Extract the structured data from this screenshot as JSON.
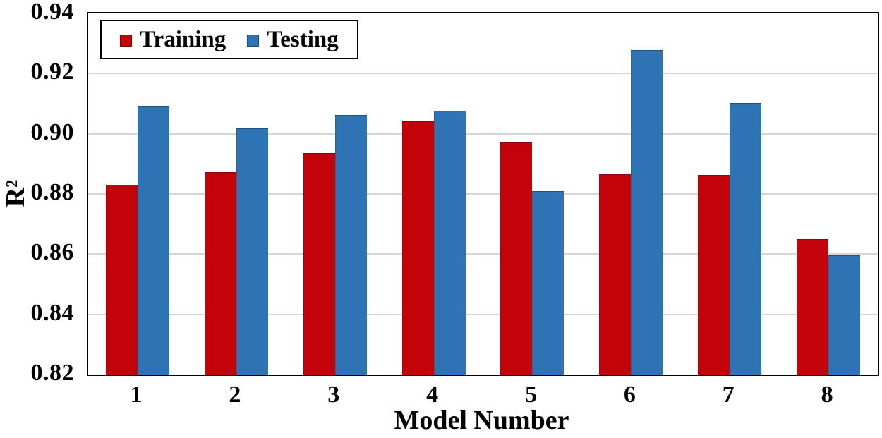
{
  "chart_data": {
    "type": "bar",
    "title": "",
    "xlabel": "Model Number",
    "ylabel": "R²",
    "categories": [
      "1",
      "2",
      "3",
      "4",
      "5",
      "6",
      "7",
      "8"
    ],
    "series": [
      {
        "name": "Training",
        "color": "#c20309",
        "values": [
          0.883,
          0.8873,
          0.8935,
          0.9042,
          0.8972,
          0.8866,
          0.8864,
          0.865
        ]
      },
      {
        "name": "Testing",
        "color": "#2e74b5",
        "values": [
          0.9093,
          0.9018,
          0.9063,
          0.9076,
          0.881,
          0.9277,
          0.9102,
          0.8597
        ]
      }
    ],
    "ylim": [
      0.82,
      0.94
    ],
    "yticks": [
      "0.82",
      "0.84",
      "0.86",
      "0.88",
      "0.90",
      "0.92",
      "0.94"
    ],
    "grid": "horizontal",
    "gridline_color": "#d6d6d6",
    "legend_position": "top-left"
  }
}
